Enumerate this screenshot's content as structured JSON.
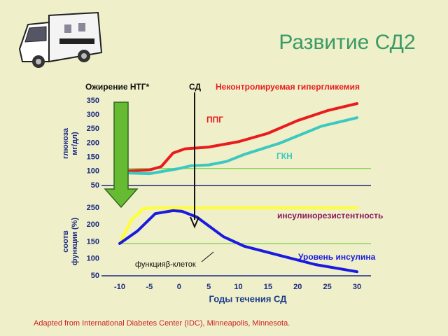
{
  "title": "Развитие СД2",
  "source": "Adapted from International Diabetes Center (IDC), Minneapolis, Minnesota.",
  "chart_data": [
    {
      "type": "line",
      "y_label": [
        "глюкоза",
        "мг/дл)"
      ],
      "annotations": [
        "Ожирение НТГ*",
        "СД",
        "Неконтролируемая гипергликемия"
      ],
      "xlim": [
        -10,
        30
      ],
      "ylim": [
        50,
        350
      ],
      "yticks": [
        50,
        100,
        150,
        200,
        250,
        300,
        350
      ],
      "reference_line": 110,
      "reference_color": "#66cc33",
      "series": [
        {
          "name": "ППГ",
          "color": "#e81c1c",
          "x": [
            -10,
            -5,
            -3,
            -1,
            1,
            5,
            10,
            15,
            20,
            25,
            30
          ],
          "values": [
            100,
            105,
            117,
            165,
            180,
            186,
            205,
            235,
            280,
            315,
            340
          ]
        },
        {
          "name": "ГКН",
          "color": "#3cc8c0",
          "x": [
            -10,
            -5,
            0,
            2,
            5,
            8,
            11,
            17,
            24,
            30
          ],
          "values": [
            95,
            92,
            110,
            120,
            123,
            135,
            160,
            200,
            260,
            290
          ]
        }
      ]
    },
    {
      "type": "line",
      "y_label": [
        "соотв",
        "функции (%)"
      ],
      "x_label": "Годы течения СД",
      "annotations": [
        "функцияβ-клеток"
      ],
      "xlim": [
        -10,
        30
      ],
      "xticks": [
        -10,
        -5,
        0,
        5,
        10,
        15,
        20,
        25,
        30
      ],
      "ylim": [
        50,
        250
      ],
      "yticks": [
        50,
        100,
        150,
        200,
        250
      ],
      "reference_line": 145,
      "reference_color": "#66cc33",
      "series": [
        {
          "name": "инсулинорезистентность",
          "color": "#ffff33",
          "x": [
            -10,
            -8,
            -6,
            -4,
            30
          ],
          "values": [
            145,
            215,
            248,
            250,
            250
          ]
        },
        {
          "name": "Уровень инсулина",
          "color": "#1a1ae0",
          "x": [
            -10,
            -7,
            -4,
            -1,
            0.5,
            3,
            7.5,
            11,
            17,
            23,
            30
          ],
          "values": [
            145,
            182,
            233,
            242,
            240,
            223,
            165,
            137,
            110,
            83,
            62
          ]
        }
      ]
    }
  ]
}
